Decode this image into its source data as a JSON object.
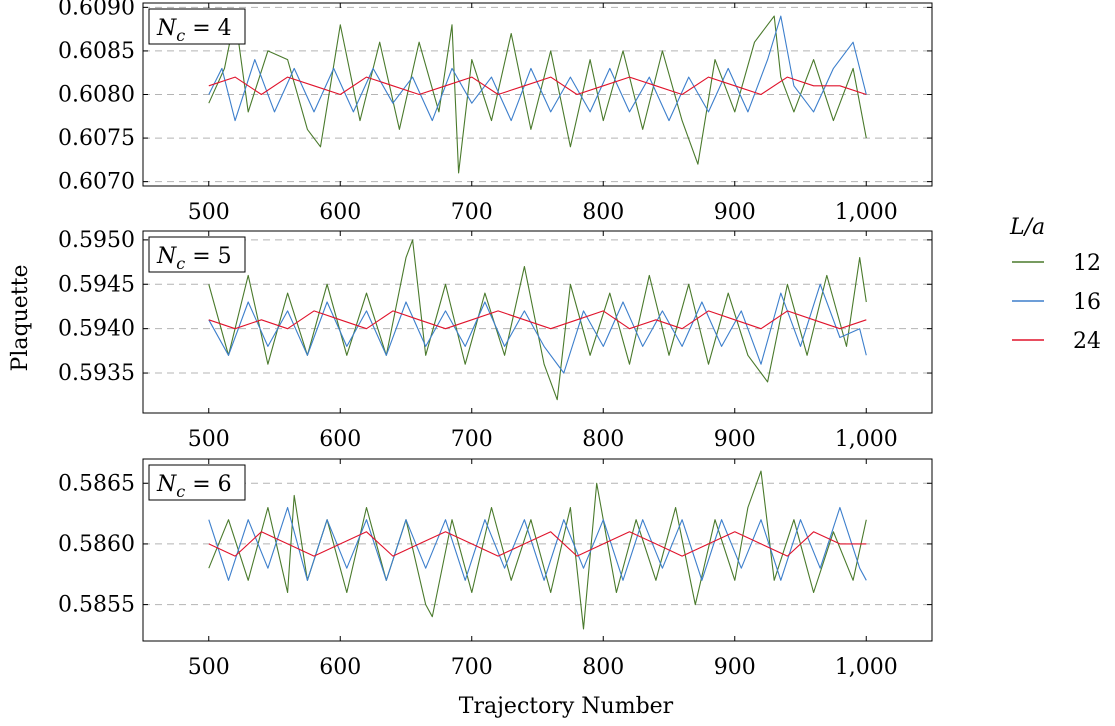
{
  "figure": {
    "ylabel": "Plaquette",
    "xlabel": "Trajectory Number",
    "legend_title": "L/a"
  },
  "chart_data": [
    {
      "type": "line",
      "panel_label": "N_c = 4",
      "xlim": [
        450,
        1050
      ],
      "ylim": [
        0.60695,
        0.60905
      ],
      "xticks": [
        500,
        600,
        700,
        800,
        900,
        1000
      ],
      "xtick_labels": [
        "500",
        "600",
        "700",
        "800",
        "900",
        "1,000"
      ],
      "yticks": [
        0.607,
        0.6075,
        0.608,
        0.6085,
        0.609
      ],
      "ytick_labels": [
        "0.6070",
        "0.6075",
        "0.6080",
        "0.6085",
        "0.6090"
      ],
      "grid": "horizontal-dashed",
      "series": [
        {
          "name": "12",
          "color": "#4a7a2c",
          "x": [
            500,
            512,
            520,
            530,
            545,
            560,
            575,
            585,
            600,
            615,
            630,
            645,
            660,
            675,
            685,
            690,
            700,
            715,
            730,
            745,
            760,
            775,
            790,
            800,
            815,
            830,
            845,
            860,
            872,
            885,
            900,
            915,
            930,
            935,
            945,
            960,
            975,
            990,
            1000
          ],
          "y": [
            0.6079,
            0.6083,
            0.6089,
            0.6078,
            0.6085,
            0.6084,
            0.6076,
            0.6074,
            0.6088,
            0.6077,
            0.6086,
            0.6076,
            0.6086,
            0.6078,
            0.6088,
            0.6071,
            0.6084,
            0.6077,
            0.6087,
            0.6076,
            0.6085,
            0.6074,
            0.6084,
            0.6077,
            0.6085,
            0.6076,
            0.6085,
            0.6077,
            0.6072,
            0.6084,
            0.6078,
            0.6086,
            0.6089,
            0.6082,
            0.6078,
            0.6084,
            0.6077,
            0.6083,
            0.6075
          ]
        },
        {
          "name": "16",
          "color": "#3d7fcc",
          "x": [
            500,
            510,
            520,
            535,
            550,
            565,
            580,
            595,
            610,
            625,
            640,
            655,
            670,
            685,
            700,
            715,
            730,
            745,
            760,
            775,
            790,
            805,
            820,
            835,
            850,
            865,
            880,
            895,
            910,
            925,
            935,
            945,
            960,
            975,
            990,
            1000
          ],
          "y": [
            0.608,
            0.6083,
            0.6077,
            0.6084,
            0.6078,
            0.6083,
            0.6078,
            0.6083,
            0.6078,
            0.6083,
            0.6079,
            0.6082,
            0.6077,
            0.6083,
            0.6079,
            0.6082,
            0.6077,
            0.6083,
            0.6078,
            0.6082,
            0.6078,
            0.6083,
            0.6078,
            0.6082,
            0.6077,
            0.6082,
            0.6078,
            0.6083,
            0.6078,
            0.6084,
            0.6089,
            0.6081,
            0.6078,
            0.6083,
            0.6086,
            0.608
          ]
        },
        {
          "name": "24",
          "color": "#e0132c",
          "x": [
            500,
            520,
            540,
            560,
            580,
            600,
            620,
            640,
            660,
            680,
            700,
            720,
            740,
            760,
            780,
            800,
            820,
            840,
            860,
            880,
            900,
            920,
            940,
            960,
            980,
            1000
          ],
          "y": [
            0.6081,
            0.6082,
            0.608,
            0.6082,
            0.6081,
            0.608,
            0.6082,
            0.6081,
            0.608,
            0.6081,
            0.6082,
            0.608,
            0.6081,
            0.6082,
            0.608,
            0.6081,
            0.6082,
            0.6081,
            0.608,
            0.6082,
            0.6081,
            0.608,
            0.6082,
            0.6081,
            0.6081,
            0.608
          ]
        }
      ]
    },
    {
      "type": "line",
      "panel_label": "N_c = 5",
      "xlim": [
        450,
        1050
      ],
      "ylim": [
        0.59305,
        0.5951
      ],
      "xticks": [
        500,
        600,
        700,
        800,
        900,
        1000
      ],
      "xtick_labels": [
        "500",
        "600",
        "700",
        "800",
        "900",
        "1,000"
      ],
      "yticks": [
        0.5935,
        0.594,
        0.5945,
        0.595
      ],
      "ytick_labels": [
        "0.5935",
        "0.5940",
        "0.5945",
        "0.5950"
      ],
      "grid": "horizontal-dashed",
      "series": [
        {
          "name": "12",
          "color": "#4a7a2c",
          "x": [
            500,
            515,
            530,
            545,
            560,
            575,
            590,
            605,
            620,
            635,
            650,
            655,
            665,
            680,
            695,
            710,
            725,
            740,
            755,
            765,
            775,
            790,
            805,
            820,
            835,
            850,
            865,
            880,
            895,
            910,
            925,
            940,
            955,
            970,
            985,
            995,
            1000
          ],
          "y": [
            0.5945,
            0.5937,
            0.5946,
            0.5936,
            0.5944,
            0.5937,
            0.5945,
            0.5937,
            0.5944,
            0.5937,
            0.5948,
            0.595,
            0.5937,
            0.5945,
            0.5936,
            0.5944,
            0.5937,
            0.5947,
            0.5936,
            0.5932,
            0.5945,
            0.5937,
            0.5944,
            0.5936,
            0.5946,
            0.5937,
            0.5945,
            0.5936,
            0.5944,
            0.5937,
            0.5934,
            0.5945,
            0.5937,
            0.5946,
            0.5938,
            0.5948,
            0.5943
          ]
        },
        {
          "name": "16",
          "color": "#3d7fcc",
          "x": [
            500,
            515,
            530,
            545,
            560,
            575,
            590,
            605,
            620,
            635,
            650,
            665,
            680,
            695,
            710,
            725,
            740,
            755,
            770,
            785,
            800,
            815,
            830,
            845,
            860,
            875,
            890,
            905,
            920,
            935,
            950,
            965,
            980,
            995,
            1000
          ],
          "y": [
            0.5941,
            0.5937,
            0.5943,
            0.5938,
            0.5942,
            0.5937,
            0.5943,
            0.5938,
            0.5942,
            0.5937,
            0.5943,
            0.5938,
            0.5942,
            0.5938,
            0.5943,
            0.5938,
            0.5942,
            0.5938,
            0.5935,
            0.5942,
            0.5938,
            0.5943,
            0.5938,
            0.5942,
            0.5938,
            0.5943,
            0.5938,
            0.5942,
            0.5936,
            0.5944,
            0.5938,
            0.5945,
            0.5939,
            0.594,
            0.5937
          ]
        },
        {
          "name": "24",
          "color": "#e0132c",
          "x": [
            500,
            520,
            540,
            560,
            580,
            600,
            620,
            640,
            660,
            680,
            700,
            720,
            740,
            760,
            780,
            800,
            820,
            840,
            860,
            880,
            900,
            920,
            940,
            960,
            980,
            1000
          ],
          "y": [
            0.5941,
            0.594,
            0.5941,
            0.594,
            0.5942,
            0.5941,
            0.594,
            0.5942,
            0.5941,
            0.594,
            0.5941,
            0.5942,
            0.5941,
            0.594,
            0.5941,
            0.5942,
            0.594,
            0.5941,
            0.594,
            0.5942,
            0.5941,
            0.594,
            0.5942,
            0.5941,
            0.594,
            0.5941
          ]
        }
      ]
    },
    {
      "type": "line",
      "panel_label": "N_c = 6",
      "xlim": [
        450,
        1050
      ],
      "ylim": [
        0.5852,
        0.5867
      ],
      "xticks": [
        500,
        600,
        700,
        800,
        900,
        1000
      ],
      "xtick_labels": [
        "500",
        "600",
        "700",
        "800",
        "900",
        "1,000"
      ],
      "yticks": [
        0.5855,
        0.586,
        0.5865
      ],
      "ytick_labels": [
        "0.5855",
        "0.5860",
        "0.5865"
      ],
      "grid": "horizontal-dashed",
      "series": [
        {
          "name": "12",
          "color": "#4a7a2c",
          "x": [
            500,
            515,
            530,
            545,
            560,
            565,
            575,
            590,
            605,
            620,
            635,
            650,
            665,
            670,
            685,
            700,
            715,
            730,
            745,
            760,
            775,
            785,
            795,
            810,
            825,
            840,
            855,
            870,
            885,
            900,
            910,
            920,
            930,
            945,
            960,
            975,
            990,
            1000
          ],
          "y": [
            0.5858,
            0.5862,
            0.5857,
            0.5863,
            0.5856,
            0.5864,
            0.5857,
            0.5862,
            0.5856,
            0.5863,
            0.5857,
            0.5862,
            0.5855,
            0.5854,
            0.5862,
            0.5856,
            0.5863,
            0.5857,
            0.5862,
            0.5856,
            0.5863,
            0.5853,
            0.5865,
            0.5856,
            0.5862,
            0.5857,
            0.5863,
            0.5855,
            0.5862,
            0.5857,
            0.5863,
            0.5866,
            0.5857,
            0.5862,
            0.5856,
            0.5861,
            0.5857,
            0.5862
          ]
        },
        {
          "name": "16",
          "color": "#3d7fcc",
          "x": [
            500,
            515,
            530,
            545,
            560,
            575,
            590,
            605,
            620,
            635,
            650,
            665,
            680,
            695,
            710,
            725,
            740,
            755,
            770,
            785,
            800,
            815,
            830,
            845,
            860,
            875,
            890,
            905,
            920,
            935,
            950,
            965,
            980,
            995,
            1000
          ],
          "y": [
            0.5862,
            0.5857,
            0.5862,
            0.5858,
            0.5863,
            0.5857,
            0.5862,
            0.5858,
            0.5862,
            0.5857,
            0.5862,
            0.5858,
            0.5862,
            0.5857,
            0.5862,
            0.5858,
            0.5862,
            0.5857,
            0.5862,
            0.5858,
            0.5862,
            0.5857,
            0.5862,
            0.5858,
            0.5862,
            0.5857,
            0.5862,
            0.5858,
            0.5862,
            0.5857,
            0.5862,
            0.5858,
            0.5863,
            0.5858,
            0.5857
          ]
        },
        {
          "name": "24",
          "color": "#e0132c",
          "x": [
            500,
            520,
            540,
            560,
            580,
            600,
            620,
            640,
            660,
            680,
            700,
            720,
            740,
            760,
            780,
            800,
            820,
            840,
            860,
            880,
            900,
            920,
            940,
            960,
            980,
            1000
          ],
          "y": [
            0.586,
            0.5859,
            0.5861,
            0.586,
            0.5859,
            0.586,
            0.5861,
            0.5859,
            0.586,
            0.5861,
            0.586,
            0.5859,
            0.586,
            0.5861,
            0.5859,
            0.586,
            0.5861,
            0.586,
            0.5859,
            0.586,
            0.5861,
            0.586,
            0.5859,
            0.5861,
            0.586,
            0.586
          ]
        }
      ]
    }
  ]
}
